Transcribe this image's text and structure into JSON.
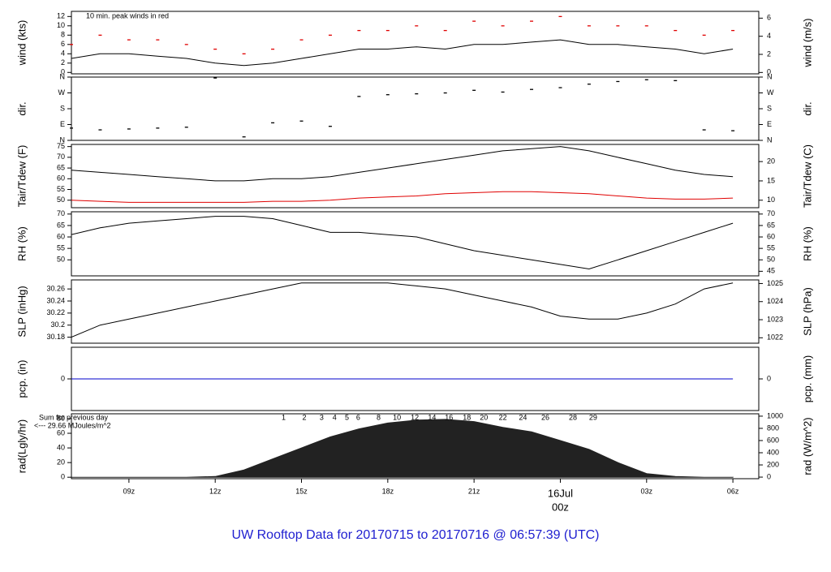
{
  "footer_title": "UW Rooftop Data for 20170715  to  20170716 @ 06:57:39  (UTC)",
  "chart_data": [
    {
      "type": "line",
      "ylabel": "wind (kts)",
      "y2label": "wind (m/s)",
      "annotation": "10 min. peak winds in red",
      "annotation_color": "#e00000",
      "xlim": [
        7,
        30.9
      ],
      "ylim": [
        -0.3,
        13.1
      ],
      "y2lim": [
        -0.15,
        6.75
      ],
      "yticks": [
        0,
        2,
        4,
        6,
        8,
        10,
        12
      ],
      "y2ticks": [
        0,
        2,
        4,
        6
      ],
      "x": [
        7,
        8,
        9,
        10,
        11,
        12,
        13,
        14,
        15,
        16,
        17,
        18,
        19,
        20,
        21,
        22,
        23,
        24,
        25,
        26,
        27,
        28,
        29,
        30
      ],
      "series": [
        {
          "color": "#000000",
          "style": "line",
          "values": [
            3,
            4,
            4,
            3.5,
            3,
            2,
            1.5,
            2,
            3,
            4,
            5,
            5,
            5.5,
            5,
            6,
            6,
            6.5,
            7,
            6,
            6,
            5.5,
            5,
            4,
            5
          ]
        },
        {
          "color": "#e00000",
          "style": "dash",
          "values": [
            6,
            8,
            7,
            7,
            6,
            5,
            4,
            5,
            7,
            8,
            9,
            9,
            10,
            9,
            11,
            10,
            11,
            12,
            10,
            10,
            10,
            9,
            8,
            9
          ]
        }
      ]
    },
    {
      "type": "scatter",
      "ylabel": "dir.",
      "y2label": "dir.",
      "xlim": [
        7,
        30.9
      ],
      "ylim": [
        0,
        360
      ],
      "y2lim": [
        0,
        360
      ],
      "yticks": [
        {
          "value": 0,
          "label": "N"
        },
        {
          "value": 90,
          "label": "E"
        },
        {
          "value": 180,
          "label": "S"
        },
        {
          "value": 270,
          "label": "W"
        },
        {
          "value": 360,
          "label": "N"
        }
      ],
      "y2ticks": [
        {
          "value": 0,
          "label": "N"
        },
        {
          "value": 90,
          "label": "E"
        },
        {
          "value": 180,
          "label": "S"
        },
        {
          "value": 270,
          "label": "W"
        },
        {
          "value": 360,
          "label": "N"
        }
      ],
      "x": [
        7,
        8,
        9,
        10,
        11,
        12,
        13,
        14,
        15,
        16,
        17,
        18,
        19,
        20,
        21,
        22,
        23,
        24,
        25,
        26,
        27,
        28,
        29,
        30
      ],
      "series": [
        {
          "color": "#000000",
          "style": "dash",
          "values": [
            70,
            60,
            65,
            70,
            75,
            355,
            20,
            100,
            110,
            80,
            250,
            260,
            265,
            270,
            285,
            275,
            290,
            300,
            320,
            335,
            345,
            340,
            60,
            55
          ]
        }
      ]
    },
    {
      "type": "line",
      "ylabel": "Tair/Tdew (F)",
      "y2label": "Tair/Tdew (C)",
      "xlim": [
        7,
        30.9
      ],
      "ylim": [
        46.5,
        76
      ],
      "y2lim": [
        8.06,
        24.44
      ],
      "yticks": [
        50,
        55,
        60,
        65,
        70,
        75
      ],
      "y2ticks": [
        10,
        15,
        20
      ],
      "x": [
        7,
        8,
        9,
        10,
        11,
        12,
        13,
        14,
        15,
        16,
        17,
        18,
        19,
        20,
        21,
        22,
        23,
        24,
        25,
        26,
        27,
        28,
        29,
        30
      ],
      "series": [
        {
          "color": "#000000",
          "style": "line",
          "values": [
            64,
            63,
            62,
            61,
            60,
            59,
            59,
            60,
            60,
            61,
            63,
            65,
            67,
            69,
            71,
            73,
            74,
            75,
            73,
            70,
            67,
            64,
            62,
            61
          ]
        },
        {
          "color": "#e00000",
          "style": "line",
          "values": [
            50,
            49.5,
            49,
            49,
            49,
            49,
            49,
            49.5,
            49.5,
            50,
            51,
            51.5,
            52,
            53,
            53.5,
            54,
            54,
            53.5,
            53,
            52,
            51,
            50.5,
            50.5,
            51
          ]
        }
      ]
    },
    {
      "type": "line",
      "ylabel": "RH (%)",
      "y2label": "RH (%)",
      "xlim": [
        7,
        30.9
      ],
      "ylim": [
        43,
        71
      ],
      "y2lim": [
        43,
        71
      ],
      "yticks": [
        50,
        55,
        60,
        65,
        70
      ],
      "y2ticks": [
        45,
        50,
        55,
        60,
        65,
        70
      ],
      "x": [
        7,
        8,
        9,
        10,
        11,
        12,
        13,
        14,
        15,
        16,
        17,
        18,
        19,
        20,
        21,
        22,
        23,
        24,
        25,
        26,
        27,
        28,
        29,
        30
      ],
      "series": [
        {
          "color": "#000000",
          "style": "line",
          "values": [
            61,
            64,
            66,
            67,
            68,
            69,
            69,
            68,
            65,
            62,
            62,
            61,
            60,
            57,
            54,
            52,
            50,
            48,
            46,
            50,
            54,
            58,
            62,
            66
          ]
        }
      ]
    },
    {
      "type": "line",
      "ylabel": "SLP (inHg)",
      "y2label": "SLP (hPa)",
      "xlim": [
        7,
        30.9
      ],
      "ylim": [
        30.17,
        30.275
      ],
      "y2lim": [
        1021.7,
        1025.2
      ],
      "yticks": [
        30.18,
        30.2,
        30.22,
        30.24,
        30.26
      ],
      "y2ticks": [
        1022,
        1023,
        1024,
        1025
      ],
      "x": [
        7,
        8,
        9,
        10,
        11,
        12,
        13,
        14,
        15,
        16,
        17,
        18,
        19,
        20,
        21,
        22,
        23,
        24,
        25,
        26,
        27,
        28,
        29,
        30
      ],
      "series": [
        {
          "color": "#000000",
          "style": "line",
          "values": [
            30.18,
            30.2,
            30.21,
            30.22,
            30.23,
            30.24,
            30.25,
            30.26,
            30.27,
            30.27,
            30.27,
            30.27,
            30.265,
            30.26,
            30.25,
            30.24,
            30.23,
            30.215,
            30.21,
            30.21,
            30.22,
            30.235,
            30.26,
            30.27
          ]
        }
      ]
    },
    {
      "type": "line",
      "ylabel": "pcp. (in)",
      "y2label": "pcp. (mm)",
      "xlim": [
        7,
        30.9
      ],
      "ylim": [
        -1,
        1
      ],
      "y2lim": [
        -1,
        1
      ],
      "yticks": [
        0
      ],
      "y2ticks": [
        0
      ],
      "x": [
        7,
        8,
        9,
        10,
        11,
        12,
        13,
        14,
        15,
        16,
        17,
        18,
        19,
        20,
        21,
        22,
        23,
        24,
        25,
        26,
        27,
        28,
        29,
        30
      ],
      "series": [
        {
          "color": "#0000cc",
          "style": "line",
          "values": [
            0,
            0,
            0,
            0,
            0,
            0,
            0,
            0,
            0,
            0,
            0,
            0,
            0,
            0,
            0,
            0,
            0,
            0,
            0,
            0,
            0,
            0,
            0,
            0
          ]
        }
      ]
    },
    {
      "type": "area",
      "ylabel": "rad(Lgly/hr)",
      "y2label": "rad (W/m^2)",
      "annotation_lines": [
        "Sum for previous day",
        "<--- 29.66 MJoules/m^2"
      ],
      "annotation_color": "#a020d0",
      "marker_labels": [
        "1",
        "2",
        "3",
        "4",
        "5",
        "6",
        "8",
        "10",
        "12",
        "14",
        "16",
        "18",
        "20",
        "22",
        "24",
        "26",
        "28",
        "29"
      ],
      "marker_x": [
        14.38,
        15.1,
        15.7,
        16.15,
        16.58,
        16.97,
        17.68,
        18.32,
        18.94,
        19.54,
        20.13,
        20.75,
        21.34,
        22.0,
        22.7,
        23.48,
        24.44,
        25.14
      ],
      "xlim": [
        7,
        30.9
      ],
      "ylim": [
        -2,
        86.6
      ],
      "y2lim": [
        -26,
        1039
      ],
      "yticks": [
        0,
        20,
        40,
        60,
        80
      ],
      "y2ticks": [
        0,
        200,
        400,
        600,
        800,
        1000
      ],
      "xticks": [
        {
          "value": 9,
          "label": "09z"
        },
        {
          "value": 12,
          "label": "12z"
        },
        {
          "value": 15,
          "label": "15z"
        },
        {
          "value": 18,
          "label": "18z"
        },
        {
          "value": 21,
          "label": "21z"
        },
        {
          "value": 24,
          "label": "00z"
        },
        {
          "value": 27,
          "label": "03z"
        },
        {
          "value": 30,
          "label": "06z"
        }
      ],
      "date_tick": {
        "value": 24,
        "label": "16Jul"
      },
      "date_color": "#d00000",
      "x": [
        7,
        8,
        9,
        10,
        11,
        12,
        13,
        14,
        15,
        16,
        17,
        18,
        19,
        20,
        21,
        22,
        23,
        24,
        25,
        26,
        27,
        28,
        29,
        30
      ],
      "series": [
        {
          "color": "#222222",
          "style": "area",
          "values": [
            0,
            0,
            0,
            0,
            0,
            1,
            10,
            25,
            40,
            55,
            66,
            74,
            78,
            79,
            76,
            68,
            62,
            50,
            38,
            20,
            5,
            1,
            0,
            0
          ]
        }
      ]
    }
  ]
}
